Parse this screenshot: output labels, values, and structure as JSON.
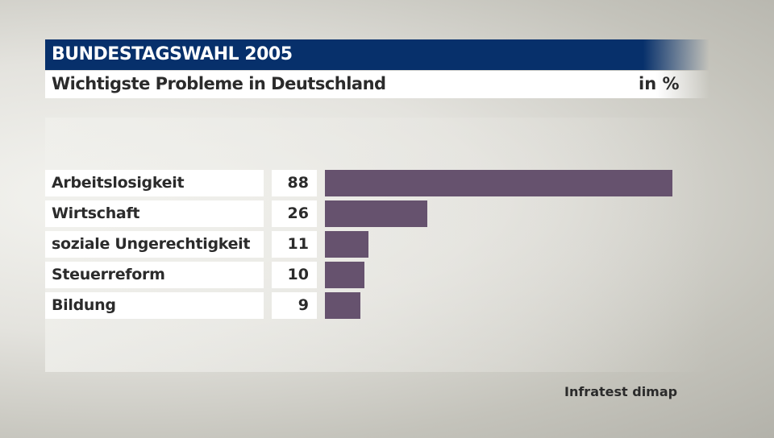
{
  "header": {
    "title": "BUNDESTAGSWAHL 2005",
    "subtitle": "Wichtigste Probleme in Deutschland",
    "unit": "in %"
  },
  "source": "Infratest dimap",
  "colors": {
    "title_bg": "#07306b",
    "bar": "#66526e"
  },
  "chart_data": {
    "type": "bar",
    "orientation": "horizontal",
    "title": "Wichtigste Probleme in Deutschland",
    "categories": [
      "Arbeitslosigkeit",
      "Wirtschaft",
      "soziale Ungerechtigkeit",
      "Steuerreform",
      "Bildung"
    ],
    "values": [
      88,
      26,
      11,
      10,
      9
    ],
    "unit": "in %",
    "xlim": [
      0,
      88
    ],
    "grid": false
  }
}
